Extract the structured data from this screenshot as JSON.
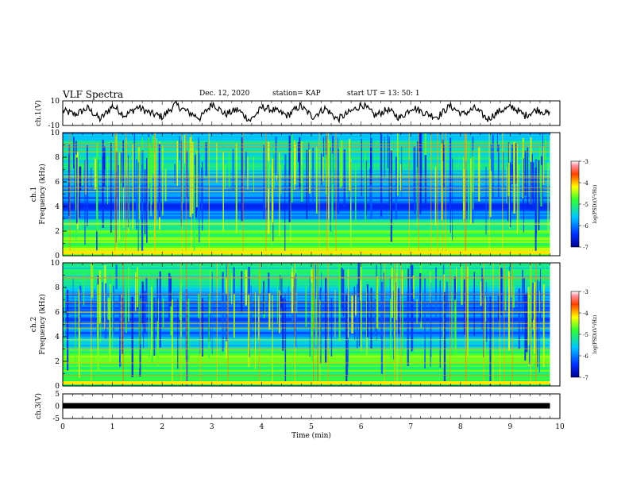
{
  "header": {
    "title": "VLF Spectra",
    "date": "Dec. 12, 2020",
    "station_label": "station= KAP",
    "start_label": "start UT = 13: 50: 1"
  },
  "chart_data": [
    {
      "type": "line",
      "panel": "waveform",
      "ylabel": "ch.1(V)",
      "ylim": [
        -10,
        10
      ],
      "y_ticklabels": [
        "10",
        "-10"
      ],
      "xlim": [
        0,
        10
      ],
      "series": [
        {
          "values": [
            2,
            -1,
            4,
            -5,
            6,
            -2,
            5,
            0,
            -3,
            7,
            1,
            -4,
            8,
            -1,
            3,
            -6,
            5,
            2,
            -2,
            6,
            -3,
            4,
            -5,
            1,
            7,
            -2,
            3,
            -4,
            5,
            0,
            -3,
            6,
            -1,
            4,
            -5,
            2,
            5,
            -2,
            3,
            -1
          ]
        }
      ]
    },
    {
      "type": "heatmap",
      "panel": "ch1-spectrogram",
      "ylabel": "ch.1 Frequency (kHz)",
      "ylim": [
        0,
        10
      ],
      "y_ticklabels": [
        "0",
        "2",
        "4",
        "6",
        "8",
        "10"
      ],
      "xlim": [
        0,
        10
      ],
      "colorbar": {
        "label": "log(PSD)(V²/Hz)",
        "range": [
          -7,
          -3
        ],
        "ticklabels": [
          "-3",
          "-4",
          "-5",
          "-6",
          "-7"
        ]
      }
    },
    {
      "type": "heatmap",
      "panel": "ch2-spectrogram",
      "ylabel": "ch.2 Frequency (kHz)",
      "ylim": [
        0,
        10
      ],
      "y_ticklabels": [
        "0",
        "2",
        "4",
        "6",
        "8",
        "10"
      ],
      "xlim": [
        0,
        10
      ],
      "colorbar": {
        "label": "log(PSD)(V²/Hz)",
        "range": [
          -7,
          -3
        ],
        "ticklabels": [
          "-3",
          "-4",
          "-5",
          "-6",
          "-7"
        ]
      }
    },
    {
      "type": "line",
      "panel": "ch3",
      "ylabel": "ch.3(V)",
      "ylim": [
        -5,
        5
      ],
      "y_ticklabels": [
        "5",
        "0",
        "-5"
      ],
      "xlim": [
        0,
        10
      ],
      "series": [
        {
          "values": [
            0,
            0
          ]
        }
      ]
    }
  ],
  "x_axis": {
    "label": "Time (min)",
    "ticklabels": [
      "0",
      "1",
      "2",
      "3",
      "4",
      "5",
      "6",
      "7",
      "8",
      "9",
      "10"
    ]
  }
}
